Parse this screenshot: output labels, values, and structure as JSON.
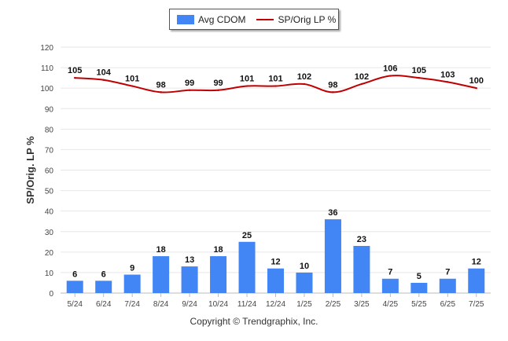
{
  "chart_data": {
    "type": "bar+line",
    "categories": [
      "5/24",
      "6/24",
      "7/24",
      "8/24",
      "9/24",
      "10/24",
      "11/24",
      "12/24",
      "1/25",
      "2/25",
      "3/25",
      "4/25",
      "5/25",
      "6/25",
      "7/25"
    ],
    "series": [
      {
        "name": "Avg CDOM",
        "type": "bar",
        "values": [
          6,
          6,
          9,
          18,
          13,
          18,
          25,
          12,
          10,
          36,
          23,
          7,
          5,
          7,
          12
        ],
        "color": "#4285f4"
      },
      {
        "name": "SP/Orig LP %",
        "type": "line",
        "values": [
          105,
          104,
          101,
          98,
          99,
          99,
          101,
          101,
          102,
          98,
          102,
          106,
          105,
          103,
          100
        ],
        "color": "#c00000"
      }
    ],
    "ylabel": "SP/Orig. LP %",
    "xlabel": "",
    "ylim": [
      0,
      120
    ],
    "yticks": [
      0,
      10,
      20,
      30,
      40,
      50,
      60,
      70,
      80,
      90,
      100,
      110,
      120
    ],
    "grid": true,
    "legend": "top-center"
  },
  "footer": {
    "copyright": "Copyright © Trendgraphix, Inc."
  }
}
